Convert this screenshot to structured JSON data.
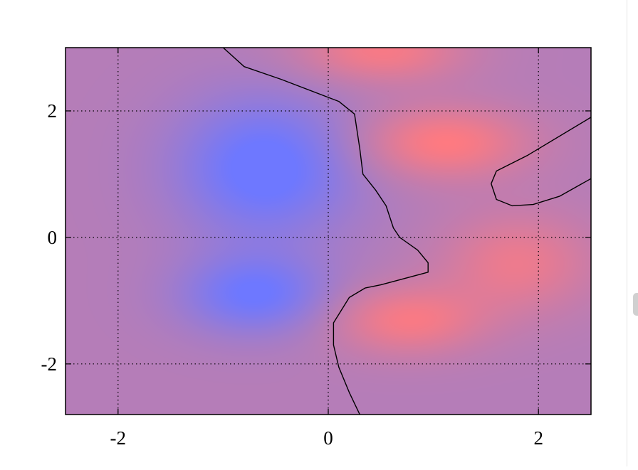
{
  "chart_data": {
    "type": "heatmap",
    "title": "",
    "xlabel": "",
    "ylabel": "",
    "xlim": [
      -2.5,
      2.5
    ],
    "ylim": [
      -2.8,
      3.0
    ],
    "x_ticks": [
      -2,
      0,
      2
    ],
    "y_ticks": [
      -2,
      0,
      2
    ],
    "x_tick_labels": [
      "-2",
      "0",
      "2"
    ],
    "y_tick_labels": [
      "-2",
      "0",
      "2"
    ],
    "grid": true,
    "colormap": {
      "negative": "#6e78ff",
      "neutral": "#b57db8",
      "positive": "#ff7a80"
    },
    "features": [
      {
        "kind": "low",
        "x": -0.6,
        "y": 1.1,
        "sx": 0.6,
        "sy": 0.8,
        "a": 1.15
      },
      {
        "kind": "low",
        "x": -0.7,
        "y": -0.9,
        "sx": 0.5,
        "sy": 0.45,
        "a": 1.0
      },
      {
        "kind": "high",
        "x": 1.1,
        "y": 1.5,
        "sx": 0.55,
        "sy": 0.4,
        "a": 1.0
      },
      {
        "kind": "high",
        "x": 0.5,
        "y": 2.95,
        "sx": 0.55,
        "sy": 0.35,
        "a": 0.9
      },
      {
        "kind": "high",
        "x": 0.75,
        "y": -1.3,
        "sx": 0.5,
        "sy": 0.38,
        "a": 0.9
      },
      {
        "kind": "high",
        "x": 1.8,
        "y": -0.4,
        "sx": 0.5,
        "sy": 0.55,
        "a": 0.75
      }
    ],
    "contours": [
      {
        "level": 0,
        "points": [
          [
            -1.0,
            3.0
          ],
          [
            -0.8,
            2.7
          ],
          [
            -0.45,
            2.5
          ],
          [
            0.1,
            2.15
          ],
          [
            0.25,
            1.95
          ],
          [
            0.3,
            1.4
          ],
          [
            0.33,
            1.0
          ],
          [
            0.45,
            0.75
          ],
          [
            0.55,
            0.5
          ],
          [
            0.62,
            0.15
          ],
          [
            0.68,
            0.0
          ],
          [
            0.85,
            -0.2
          ],
          [
            0.95,
            -0.4
          ],
          [
            0.95,
            -0.55
          ],
          [
            0.5,
            -0.75
          ],
          [
            0.35,
            -0.8
          ],
          [
            0.2,
            -0.95
          ],
          [
            0.05,
            -1.35
          ],
          [
            0.05,
            -1.7
          ],
          [
            0.1,
            -2.05
          ],
          [
            0.2,
            -2.45
          ],
          [
            0.3,
            -2.8
          ]
        ]
      },
      {
        "level": 0,
        "points": [
          [
            2.5,
            1.9
          ],
          [
            1.9,
            1.3
          ],
          [
            1.6,
            1.05
          ],
          [
            1.55,
            0.85
          ],
          [
            1.6,
            0.6
          ],
          [
            1.75,
            0.5
          ],
          [
            1.95,
            0.52
          ],
          [
            2.2,
            0.65
          ],
          [
            2.5,
            0.93
          ]
        ]
      }
    ]
  }
}
